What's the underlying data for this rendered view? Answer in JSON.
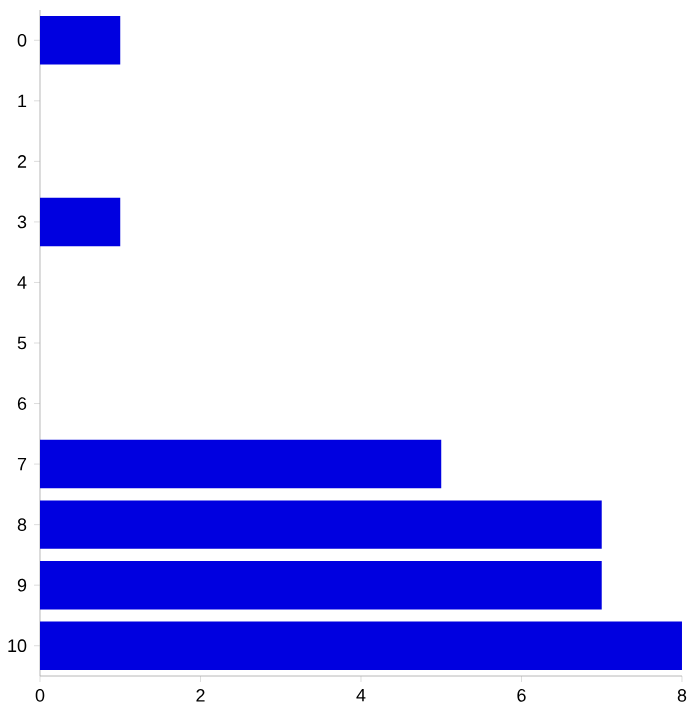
{
  "chart_data": {
    "type": "bar",
    "orientation": "horizontal",
    "categories": [
      "0",
      "1",
      "2",
      "3",
      "4",
      "5",
      "6",
      "7",
      "8",
      "9",
      "10"
    ],
    "values": [
      1,
      0,
      0,
      1,
      0,
      0,
      0,
      5,
      7,
      7,
      8
    ],
    "color": "#0000e0",
    "xlim": [
      0,
      8
    ],
    "xticks": [
      0,
      2,
      4,
      6,
      8
    ]
  }
}
